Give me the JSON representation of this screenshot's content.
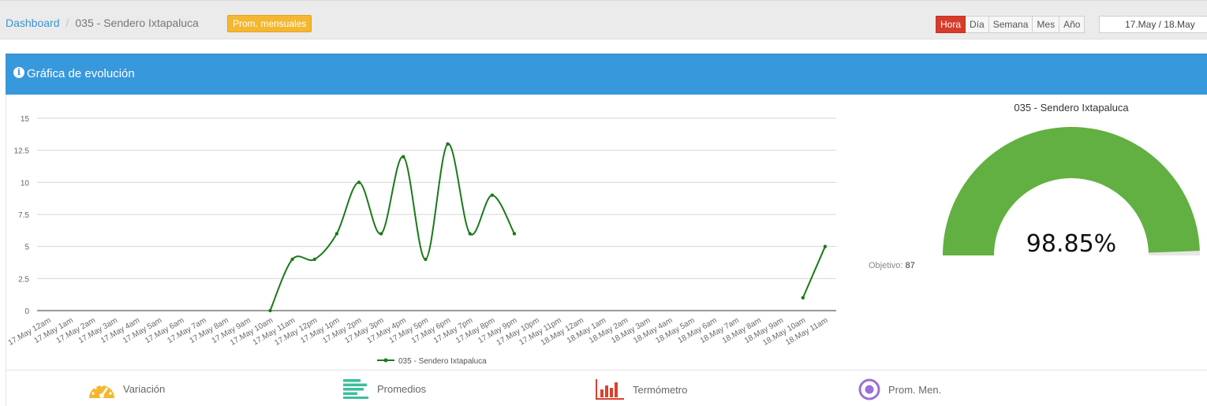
{
  "breadcrumb": {
    "root": "Dashboard",
    "current": "035 - Sendero Ixtapaluca"
  },
  "badge": "Prom. mensuales",
  "period_buttons": [
    {
      "label": "Hora",
      "active": true
    },
    {
      "label": "Día",
      "active": false
    },
    {
      "label": "Semana",
      "active": false
    },
    {
      "label": "Mes",
      "active": false
    },
    {
      "label": "Año",
      "active": false
    }
  ],
  "date_range": "17.May / 18.May",
  "panel": {
    "title": "Gráfica de evolución"
  },
  "gauge": {
    "title": "035 - Sendero Ixtapaluca",
    "value_label": "98.85%",
    "value_percent": 98.85,
    "target_label": "Objetivo:",
    "target_value": "87",
    "color": "#62b041",
    "track_color": "#e6e6e6"
  },
  "chart_data": {
    "type": "line",
    "categories": [
      "17.May 12am",
      "17.May 1am",
      "17.May 2am",
      "17.May 3am",
      "17.May 4am",
      "17.May 5am",
      "17.May 6am",
      "17.May 7am",
      "17.May 8am",
      "17.May 9am",
      "17.May 10am",
      "17.May 11am",
      "17.May 12pm",
      "17.May 1pm",
      "17.May 2pm",
      "17.May 3pm",
      "17.May 4pm",
      "17.May 5pm",
      "17.May 6pm",
      "17.May 7pm",
      "17.May 8pm",
      "17.May 9pm",
      "17.May 10pm",
      "17.May 11pm",
      "18.May 12am",
      "18.May 1am",
      "18.May 2am",
      "18.May 3am",
      "18.May 4am",
      "18.May 5am",
      "18.May 6am",
      "18.May 7am",
      "18.May 8am",
      "18.May 9am",
      "18.May 10am",
      "18.May 11am"
    ],
    "series": [
      {
        "name": "035 - Sendero Ixtapaluca",
        "color": "#1a7a1a",
        "values": [
          null,
          null,
          null,
          null,
          null,
          null,
          null,
          null,
          null,
          null,
          0,
          4,
          4,
          6,
          10,
          6,
          12,
          4,
          13,
          6,
          9,
          6,
          null,
          null,
          null,
          null,
          null,
          null,
          null,
          null,
          null,
          null,
          null,
          null,
          1,
          5
        ]
      }
    ],
    "yticks": [
      "0",
      "2.5",
      "5",
      "7.5",
      "10",
      "12.5",
      "15"
    ],
    "ylim": [
      0,
      15
    ],
    "grid": true,
    "legend": "bottom-center",
    "smooth": true
  },
  "tools": [
    {
      "label": "Variación",
      "icon": "speedometer-icon",
      "color": "#f5b731"
    },
    {
      "label": "Promedios",
      "icon": "bars-list-icon",
      "color": "#3bbf9e"
    },
    {
      "label": "Termómetro",
      "icon": "bar-chart-icon",
      "color": "#d9412b"
    },
    {
      "label": "Prom. Men.",
      "icon": "target-icon",
      "color": "#9c6fd9"
    }
  ]
}
